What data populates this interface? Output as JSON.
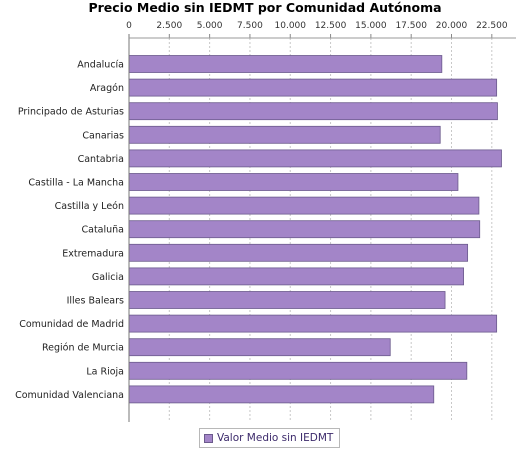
{
  "chart_data": {
    "type": "bar",
    "orientation": "horizontal",
    "title": "Precio Medio sin IEDMT por Comunidad Autónoma",
    "xlim": [
      0,
      24000
    ],
    "ticks": [
      0,
      2500,
      5000,
      7500,
      10000,
      12500,
      15000,
      17500,
      20000,
      22500
    ],
    "tick_labels": [
      "0",
      "2.500",
      "5.000",
      "7.500",
      "10.000",
      "12.500",
      "15.000",
      "17.500",
      "20.000",
      "22.500"
    ],
    "grid": true,
    "legend_position": "bottom",
    "bar_color": "#a385c8",
    "bar_stroke": "#6b5a8c",
    "categories": [
      "Andalucía",
      "Aragón",
      "Principado de Asturias",
      "Canarias",
      "Cantabria",
      "Castilla - La Mancha",
      "Castilla y León",
      "Cataluña",
      "Extremadura",
      "Galicia",
      "Illes Balears",
      "Comunidad de Madrid",
      "Región de Murcia",
      "La Rioja",
      "Comunidad Valenciana"
    ],
    "series": [
      {
        "name": "Valor Medio sin IEDMT",
        "values": [
          19400,
          22800,
          22850,
          19300,
          23100,
          20400,
          21700,
          21750,
          21000,
          20750,
          19600,
          22800,
          16200,
          20950,
          18900
        ]
      }
    ]
  }
}
